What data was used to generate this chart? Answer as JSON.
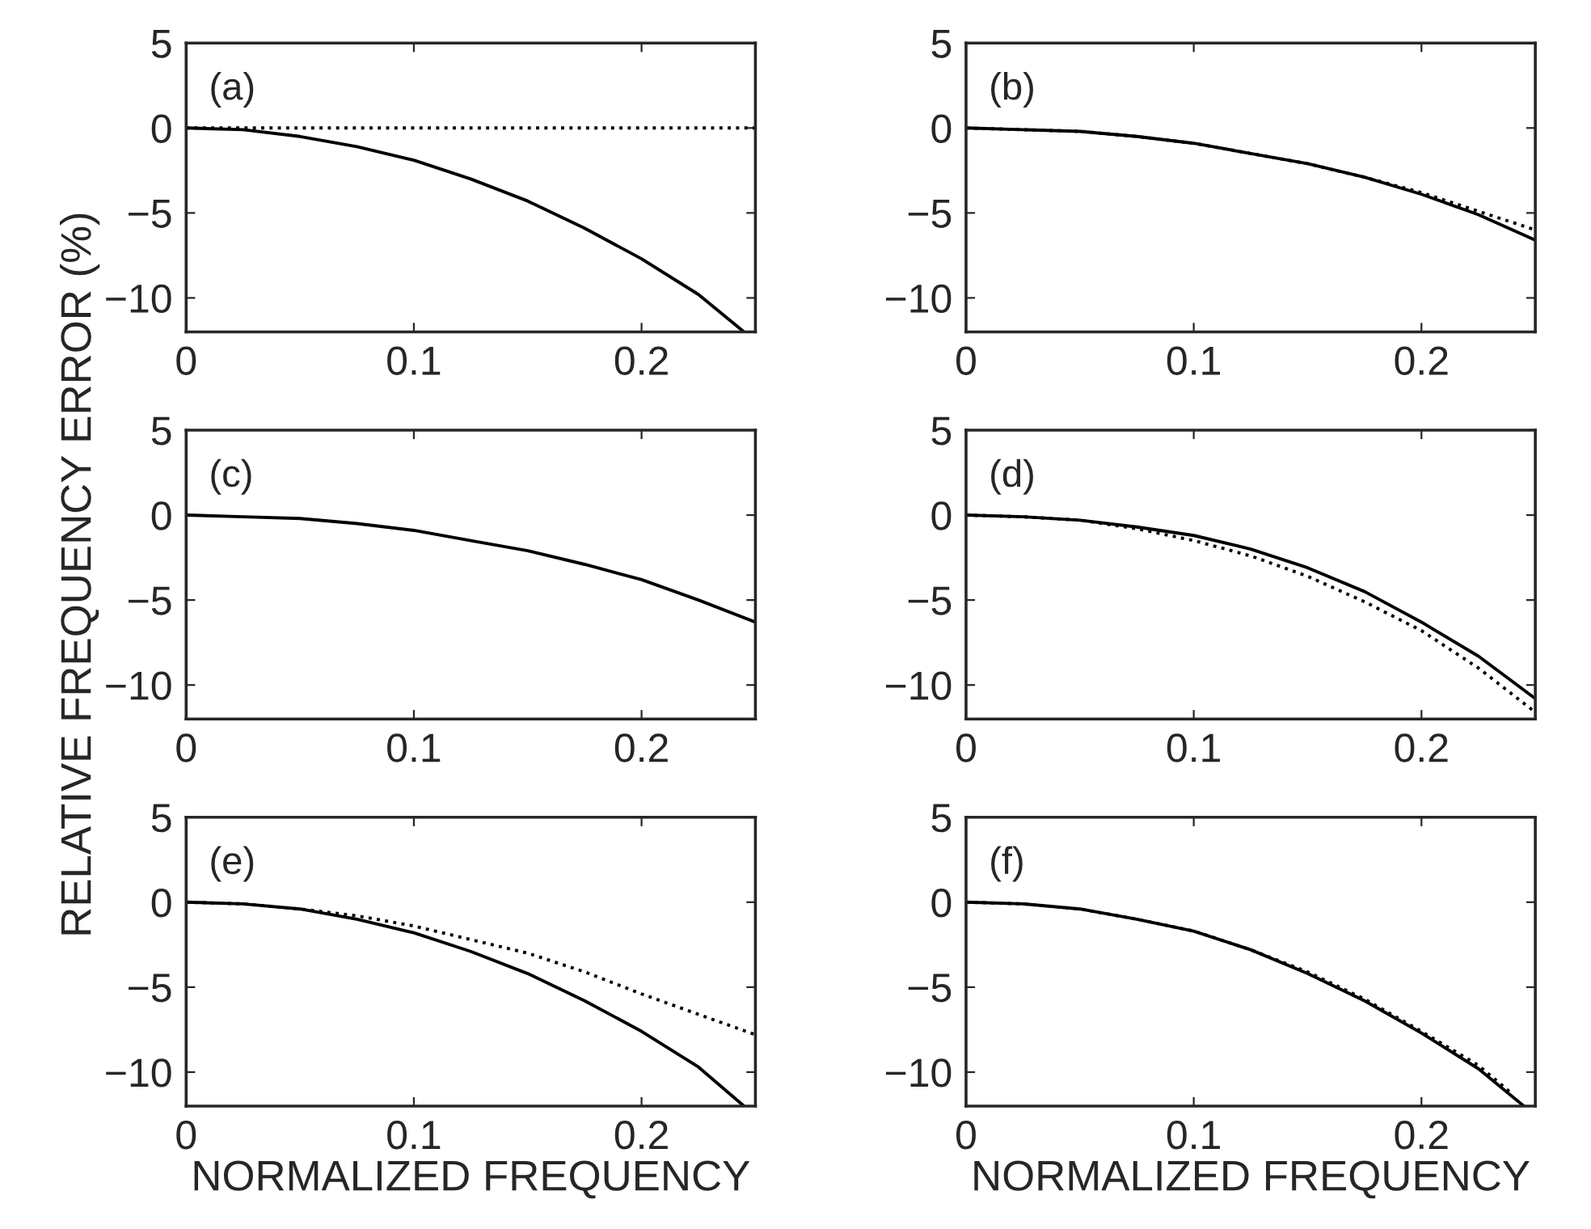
{
  "chart_data": [
    {
      "type": "line",
      "annotations": [
        "(a)"
      ],
      "xlim": [
        0,
        0.25
      ],
      "ylim": [
        -12,
        5
      ],
      "xticks": [
        0,
        0.1,
        0.2
      ],
      "yticks": [
        -10,
        -5,
        0,
        5
      ],
      "grid": false,
      "series": [
        {
          "color": "#000000",
          "line_style": "solid",
          "x": [
            0,
            0.025,
            0.05,
            0.075,
            0.1,
            0.125,
            0.15,
            0.175,
            0.2,
            0.225,
            0.245
          ],
          "values": [
            0,
            -0.1,
            -0.5,
            -1.1,
            -1.9,
            -3.0,
            -4.3,
            -5.9,
            -7.7,
            -9.8,
            -12
          ]
        },
        {
          "color": "#000000",
          "line_style": "dotted",
          "x": [
            0,
            0.25
          ],
          "values": [
            0,
            0
          ]
        }
      ]
    },
    {
      "type": "line",
      "annotations": [
        "(b)"
      ],
      "xlim": [
        0,
        0.25
      ],
      "ylim": [
        -12,
        5
      ],
      "xticks": [
        0,
        0.1,
        0.2
      ],
      "yticks": [
        -10,
        -5,
        0,
        5
      ],
      "grid": false,
      "series": [
        {
          "color": "#000000",
          "line_style": "solid",
          "x": [
            0,
            0.025,
            0.05,
            0.075,
            0.1,
            0.125,
            0.15,
            0.175,
            0.2,
            0.225,
            0.25
          ],
          "values": [
            0,
            -0.1,
            -0.2,
            -0.5,
            -0.9,
            -1.5,
            -2.1,
            -2.9,
            -3.9,
            -5.1,
            -6.6
          ]
        },
        {
          "color": "#000000",
          "line_style": "dotted",
          "x": [
            0,
            0.025,
            0.05,
            0.075,
            0.1,
            0.125,
            0.15,
            0.175,
            0.2,
            0.225,
            0.25
          ],
          "values": [
            0,
            -0.1,
            -0.2,
            -0.5,
            -0.9,
            -1.5,
            -2.1,
            -2.9,
            -3.8,
            -4.9,
            -6.0
          ]
        }
      ]
    },
    {
      "type": "line",
      "annotations": [
        "(c)"
      ],
      "ylabel": "RELATIVE FREQUENCY ERROR (%)",
      "xlim": [
        0,
        0.25
      ],
      "ylim": [
        -12,
        5
      ],
      "xticks": [
        0,
        0.1,
        0.2
      ],
      "yticks": [
        -10,
        -5,
        0,
        5
      ],
      "grid": false,
      "series": [
        {
          "color": "#000000",
          "line_style": "solid",
          "x": [
            0,
            0.025,
            0.05,
            0.075,
            0.1,
            0.125,
            0.15,
            0.175,
            0.2,
            0.225,
            0.25
          ],
          "values": [
            0,
            -0.1,
            -0.2,
            -0.5,
            -0.9,
            -1.5,
            -2.1,
            -2.9,
            -3.8,
            -5.0,
            -6.3
          ]
        }
      ]
    },
    {
      "type": "line",
      "annotations": [
        "(d)"
      ],
      "xlim": [
        0,
        0.25
      ],
      "ylim": [
        -12,
        5
      ],
      "xticks": [
        0,
        0.1,
        0.2
      ],
      "yticks": [
        -10,
        -5,
        0,
        5
      ],
      "grid": false,
      "series": [
        {
          "color": "#000000",
          "line_style": "solid",
          "x": [
            0,
            0.025,
            0.05,
            0.075,
            0.1,
            0.125,
            0.15,
            0.175,
            0.2,
            0.225,
            0.25
          ],
          "values": [
            0,
            -0.1,
            -0.3,
            -0.7,
            -1.2,
            -2.0,
            -3.1,
            -4.5,
            -6.3,
            -8.3,
            -10.8
          ]
        },
        {
          "color": "#000000",
          "line_style": "dotted",
          "x": [
            0,
            0.025,
            0.05,
            0.075,
            0.1,
            0.125,
            0.15,
            0.175,
            0.2,
            0.225,
            0.25
          ],
          "values": [
            0,
            -0.1,
            -0.3,
            -0.8,
            -1.5,
            -2.4,
            -3.6,
            -5.1,
            -6.8,
            -9.0,
            -11.6
          ]
        }
      ]
    },
    {
      "type": "line",
      "annotations": [
        "(e)"
      ],
      "xlabel": "NORMALIZED FREQUENCY",
      "xlim": [
        0,
        0.25
      ],
      "ylim": [
        -12,
        5
      ],
      "xticks": [
        0,
        0.1,
        0.2
      ],
      "yticks": [
        -10,
        -5,
        0,
        5
      ],
      "grid": false,
      "series": [
        {
          "color": "#000000",
          "line_style": "solid",
          "x": [
            0,
            0.025,
            0.05,
            0.075,
            0.1,
            0.125,
            0.15,
            0.175,
            0.2,
            0.225,
            0.245
          ],
          "values": [
            0,
            -0.1,
            -0.4,
            -1.0,
            -1.8,
            -2.9,
            -4.2,
            -5.8,
            -7.6,
            -9.7,
            -12
          ]
        },
        {
          "color": "#000000",
          "line_style": "dotted",
          "x": [
            0,
            0.025,
            0.05,
            0.075,
            0.1,
            0.125,
            0.15,
            0.175,
            0.2,
            0.225,
            0.25
          ],
          "values": [
            0,
            -0.1,
            -0.4,
            -0.8,
            -1.4,
            -2.2,
            -3.0,
            -4.1,
            -5.4,
            -6.6,
            -7.8
          ]
        }
      ]
    },
    {
      "type": "line",
      "annotations": [
        "(f)"
      ],
      "xlabel": "NORMALIZED FREQUENCY",
      "xlim": [
        0,
        0.25
      ],
      "ylim": [
        -12,
        5
      ],
      "xticks": [
        0,
        0.1,
        0.2
      ],
      "yticks": [
        -10,
        -5,
        0,
        5
      ],
      "grid": false,
      "series": [
        {
          "color": "#000000",
          "line_style": "solid",
          "x": [
            0,
            0.025,
            0.05,
            0.075,
            0.1,
            0.125,
            0.15,
            0.175,
            0.2,
            0.225,
            0.245
          ],
          "values": [
            0,
            -0.1,
            -0.4,
            -1.0,
            -1.7,
            -2.8,
            -4.2,
            -5.8,
            -7.7,
            -9.8,
            -12
          ]
        },
        {
          "color": "#000000",
          "line_style": "dotted",
          "x": [
            0,
            0.025,
            0.05,
            0.075,
            0.1,
            0.125,
            0.15,
            0.175,
            0.2,
            0.225,
            0.24
          ],
          "values": [
            0,
            -0.1,
            -0.4,
            -1.0,
            -1.7,
            -2.8,
            -4.1,
            -5.7,
            -7.6,
            -9.6,
            -11.3
          ]
        }
      ]
    }
  ]
}
